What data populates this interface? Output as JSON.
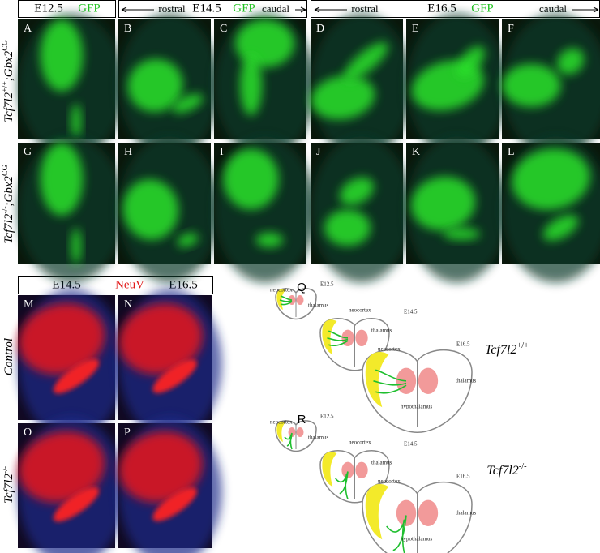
{
  "header": {
    "e12": {
      "stage": "E12.5",
      "marker": "GFP"
    },
    "e14": {
      "rostral": "rostral",
      "stage": "E14.5",
      "marker": "GFP",
      "caudal": "caudal"
    },
    "e16": {
      "rostral": "rostral",
      "stage": "E16.5",
      "marker": "GFP",
      "caudal": "caudal"
    }
  },
  "row_labels": [
    {
      "gene": "Tcf7l2",
      "genotype": "+/+",
      "sep": ";",
      "reporter": "Gbx2",
      "allele": "CG"
    },
    {
      "gene": "Tcf7l2",
      "genotype": "-/-",
      "sep": ";",
      "reporter": "Gbx2",
      "allele": "CG"
    }
  ],
  "bottom_header": {
    "left": "E14.5",
    "marker": "NeuV",
    "right": "E16.5"
  },
  "bottom_rows": [
    {
      "label": "Control"
    },
    {
      "gene": "Tcf7l2",
      "genotype": "-/-"
    }
  ],
  "panels": [
    "A",
    "B",
    "C",
    "D",
    "E",
    "F",
    "G",
    "H",
    "I",
    "J",
    "K",
    "L",
    "M",
    "N",
    "O",
    "P"
  ],
  "diagrams": [
    {
      "letter": "Q",
      "genotype": {
        "gene": "Tcf7l2",
        "genotype": "+/+"
      },
      "labels": [
        "neocortex",
        "E12.5",
        "thalamus",
        "neocortex",
        "E14.5",
        "thalamus",
        "neocortex",
        "E16.5",
        "thalamus",
        "hypothalamus"
      ]
    },
    {
      "letter": "R",
      "genotype": {
        "gene": "Tcf7l2",
        "genotype": "-/-"
      },
      "labels": [
        "neocortex",
        "E12.5",
        "thalamus",
        "neocortex",
        "E14.5",
        "thalamus",
        "neocortex",
        "E16.5",
        "thalamus",
        "hypothalamus"
      ]
    }
  ]
}
